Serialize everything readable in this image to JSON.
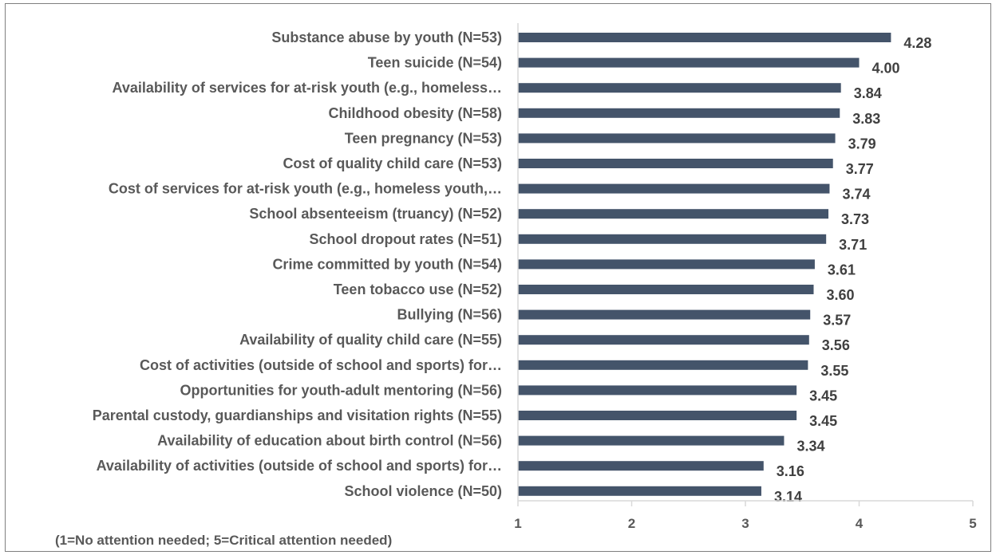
{
  "colors": {
    "bar": "#44546a",
    "axis": "#d9d9d9",
    "text": "#595959",
    "value": "#404040",
    "border": "#7f7f7f"
  },
  "chart_data": {
    "type": "bar",
    "orientation": "horizontal",
    "categories": [
      "Substance abuse by youth (N=53)",
      "Teen suicide (N=54)",
      "Availability of services for at-risk youth (e.g., homeless…",
      "Childhood obesity (N=58)",
      "Teen pregnancy (N=53)",
      "Cost of quality child care (N=53)",
      "Cost of services for at-risk youth (e.g., homeless youth,…",
      "School absenteeism (truancy) (N=52)",
      "School dropout rates (N=51)",
      "Crime committed by youth (N=54)",
      "Teen tobacco use (N=52)",
      "Bullying (N=56)",
      "Availability of quality child care (N=55)",
      "Cost of activities (outside of school and sports) for…",
      "Opportunities for youth-adult mentoring (N=56)",
      "Parental custody, guardianships and visitation rights (N=55)",
      "Availability of education about birth control (N=56)",
      "Availability of activities (outside of school and sports) for…",
      "School violence (N=50)"
    ],
    "values": [
      4.28,
      4.0,
      3.84,
      3.83,
      3.79,
      3.77,
      3.74,
      3.73,
      3.71,
      3.61,
      3.6,
      3.57,
      3.56,
      3.55,
      3.45,
      3.45,
      3.34,
      3.16,
      3.14
    ],
    "value_labels": [
      "4.28",
      "4.00",
      "3.84",
      "3.83",
      "3.79",
      "3.77",
      "3.74",
      "3.73",
      "3.71",
      "3.61",
      "3.60",
      "3.57",
      "3.56",
      "3.55",
      "3.45",
      "3.45",
      "3.34",
      "3.16",
      "3.14"
    ],
    "xlim": [
      1,
      5
    ],
    "x_ticks": [
      "1",
      "2",
      "3",
      "4",
      "5"
    ],
    "note": "(1=No attention needed; 5=Critical attention needed)",
    "grid": false,
    "legend": "none"
  }
}
